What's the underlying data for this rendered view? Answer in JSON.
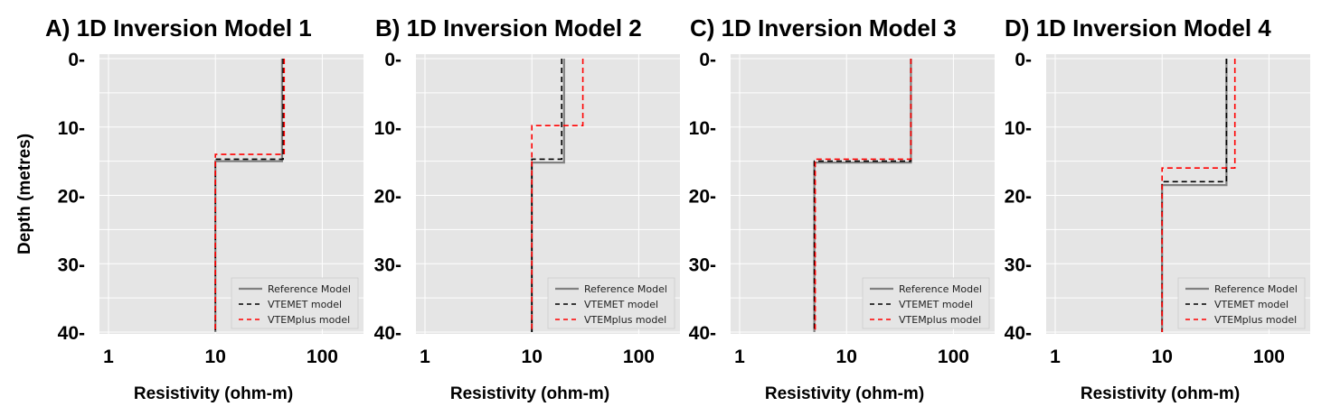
{
  "ylabel": "Depth (metres)",
  "legend_labels": [
    "Reference Model",
    "VTEMET model",
    "VTEMplus model"
  ],
  "colors": {
    "background": "#e5e5e5",
    "grid": "#ffffff",
    "reference": "#808080",
    "vtemet": "#000000",
    "vtemplus": "#ff0000"
  },
  "chart_data": [
    {
      "type": "line",
      "title": "A) 1D Inversion Model 1",
      "xlabel": "Resistivity (ohm-m)",
      "xscale": "log",
      "xlim": [
        1,
        200
      ],
      "ylim": [
        40,
        0
      ],
      "yticks": [
        "0-",
        "10-",
        "20-",
        "30-",
        "40-"
      ],
      "xticks": [
        "1",
        "10",
        "100"
      ],
      "legend": "lower-right",
      "grid": true,
      "series": [
        {
          "name": "Reference Model",
          "points": [
            [
              42,
              0
            ],
            [
              42,
              15
            ],
            [
              10,
              15
            ],
            [
              10,
              40
            ]
          ]
        },
        {
          "name": "VTEMET model",
          "points": [
            [
              43,
              0
            ],
            [
              43,
              14.7
            ],
            [
              10,
              14.7
            ],
            [
              10,
              40
            ]
          ]
        },
        {
          "name": "VTEMplus model",
          "points": [
            [
              44,
              0
            ],
            [
              44,
              14
            ],
            [
              10,
              14
            ],
            [
              10,
              40
            ]
          ]
        }
      ]
    },
    {
      "type": "line",
      "title": "B) 1D Inversion Model 2",
      "xlabel": "Resistivity (ohm-m)",
      "xscale": "log",
      "xlim": [
        1,
        200
      ],
      "ylim": [
        40,
        0
      ],
      "yticks": [
        "0-",
        "10-",
        "20-",
        "30-",
        "40-"
      ],
      "xticks": [
        "1",
        "10",
        "100"
      ],
      "legend": "lower-right",
      "grid": true,
      "series": [
        {
          "name": "Reference Model",
          "points": [
            [
              20,
              0
            ],
            [
              20,
              15.2
            ],
            [
              10,
              15.2
            ],
            [
              10,
              40
            ]
          ]
        },
        {
          "name": "VTEMET model",
          "points": [
            [
              19,
              0
            ],
            [
              19,
              14.7
            ],
            [
              10,
              14.7
            ],
            [
              10,
              40
            ]
          ]
        },
        {
          "name": "VTEMplus model",
          "points": [
            [
              30,
              0
            ],
            [
              30,
              9.8
            ],
            [
              10,
              9.8
            ],
            [
              10,
              40
            ]
          ]
        }
      ]
    },
    {
      "type": "line",
      "title": "C) 1D Inversion Model 3",
      "xlabel": "Resistivity (ohm-m)",
      "xscale": "log",
      "xlim": [
        1,
        200
      ],
      "ylim": [
        40,
        0
      ],
      "yticks": [
        "0-",
        "10-",
        "20-",
        "30-",
        "40-"
      ],
      "xticks": [
        "1",
        "10",
        "100"
      ],
      "legend": "lower-right",
      "grid": true,
      "series": [
        {
          "name": "Reference Model",
          "points": [
            [
              40,
              0
            ],
            [
              40,
              15.2
            ],
            [
              5,
              15.2
            ],
            [
              5,
              40
            ]
          ]
        },
        {
          "name": "VTEMET model",
          "points": [
            [
              40,
              0
            ],
            [
              40,
              15
            ],
            [
              5,
              15
            ],
            [
              5,
              40
            ]
          ]
        },
        {
          "name": "VTEMplus model",
          "points": [
            [
              40,
              0
            ],
            [
              40,
              14.7
            ],
            [
              5.1,
              14.7
            ],
            [
              5.1,
              40
            ]
          ]
        }
      ]
    },
    {
      "type": "line",
      "title": "D) 1D Inversion Model 4",
      "xlabel": "Resistivity (ohm-m)",
      "xscale": "log",
      "xlim": [
        1,
        200
      ],
      "ylim": [
        40,
        0
      ],
      "yticks": [
        "0-",
        "10-",
        "20-",
        "30-",
        "40-"
      ],
      "xticks": [
        "1",
        "10",
        "100"
      ],
      "legend": "lower-right",
      "grid": true,
      "series": [
        {
          "name": "Reference Model",
          "points": [
            [
              40,
              0
            ],
            [
              40,
              18.5
            ],
            [
              10,
              18.5
            ],
            [
              10,
              40
            ]
          ]
        },
        {
          "name": "VTEMET model",
          "points": [
            [
              40,
              0
            ],
            [
              40,
              18
            ],
            [
              10,
              18
            ],
            [
              10,
              40
            ]
          ]
        },
        {
          "name": "VTEMplus model",
          "points": [
            [
              48,
              0
            ],
            [
              48,
              16
            ],
            [
              10,
              16
            ],
            [
              10,
              40
            ]
          ]
        }
      ]
    }
  ]
}
